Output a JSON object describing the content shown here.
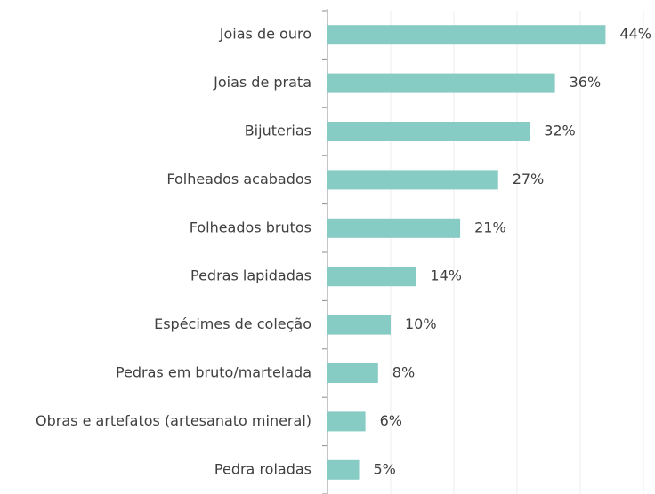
{
  "chart_data": {
    "type": "hbar",
    "categories": [
      "Joias de ouro",
      "Joias de prata",
      "Bijuterias",
      "Folheados acabados",
      "Folheados brutos",
      "Pedras lapidadas",
      "Espécimes de coleção",
      "Pedras em bruto/martelada",
      "Obras e artefatos (artesanato mineral)",
      "Pedra roladas"
    ],
    "values": [
      44,
      36,
      32,
      27,
      21,
      14,
      10,
      8,
      6,
      5
    ],
    "value_labels": [
      "44%",
      "36%",
      "32%",
      "27%",
      "21%",
      "14%",
      "10%",
      "8%",
      "6%",
      "5%"
    ],
    "color": "#86cbc4",
    "xlim": [
      0,
      50
    ],
    "xticks": [
      0,
      10,
      20,
      30,
      40,
      50
    ],
    "grid": true
  }
}
